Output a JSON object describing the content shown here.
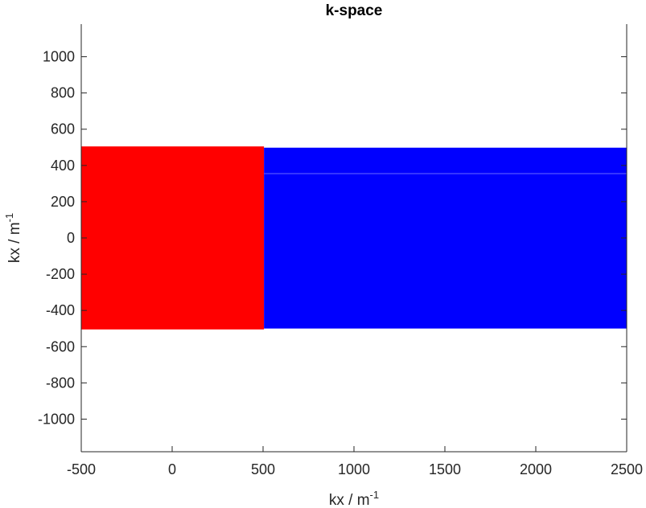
{
  "chart_data": {
    "type": "area",
    "title": "k-space",
    "xlabel": {
      "base": "kx / m",
      "superscript": "-1"
    },
    "ylabel": {
      "base": "kx / m",
      "superscript": "-1"
    },
    "xlim": [
      -500,
      2500
    ],
    "ylim": [
      -1180,
      1180
    ],
    "xticks": [
      -500,
      0,
      500,
      1000,
      1500,
      2000,
      2500
    ],
    "yticks": [
      -1000,
      -800,
      -600,
      -400,
      -200,
      0,
      200,
      400,
      600,
      800,
      1000
    ],
    "grid": false,
    "regions": [
      {
        "color": "#ff0000",
        "x": [
          -500,
          505
        ],
        "y": [
          -505,
          505
        ]
      },
      {
        "color": "#0000ff",
        "x": [
          505,
          2500
        ],
        "y": [
          -500,
          498
        ]
      }
    ],
    "lines": [
      {
        "color": "#6a6aff",
        "x": [
          505,
          2500
        ],
        "y": [
          355,
          355
        ]
      }
    ]
  }
}
